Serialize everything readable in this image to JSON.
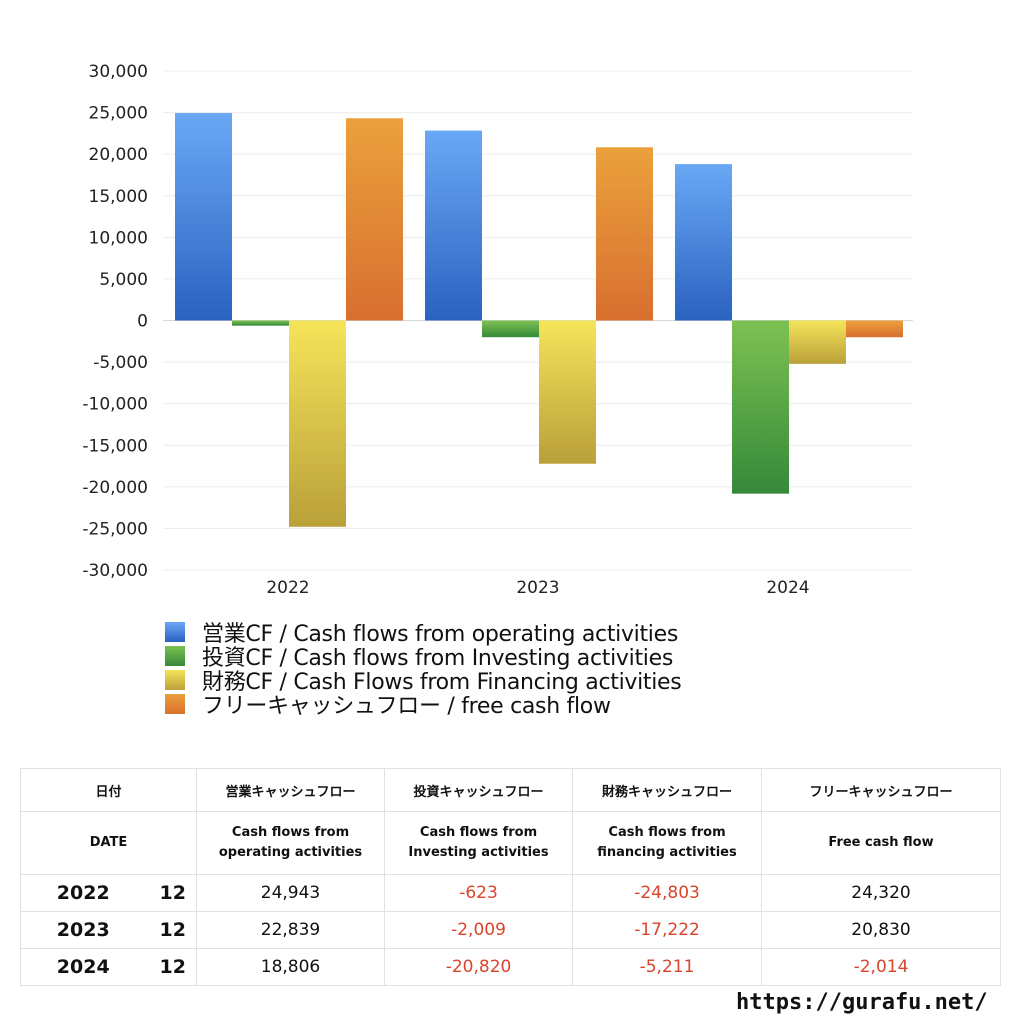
{
  "chart_data": {
    "type": "bar",
    "categories": [
      "2022",
      "2023",
      "2024"
    ],
    "series": [
      {
        "name": "営業CF / Cash flows from operating activities",
        "values": [
          24943,
          22839,
          18806
        ]
      },
      {
        "name": "投資CF / Cash flows from Investing activities",
        "values": [
          -623,
          -2009,
          -20820
        ]
      },
      {
        "name": "財務CF / Cash Flows from Financing activities",
        "values": [
          -24803,
          -17222,
          -5211
        ]
      },
      {
        "name": "フリーキャッシュフロー / free cash flow",
        "values": [
          24320,
          20830,
          -2014
        ]
      }
    ],
    "ylim": [
      -30000,
      30000
    ],
    "yticks": [
      30000,
      25000,
      20000,
      15000,
      10000,
      5000,
      0,
      -5000,
      -10000,
      -15000,
      -20000,
      -25000,
      -30000
    ],
    "ytick_labels": [
      "30,000",
      "25,000",
      "20,000",
      "15,000",
      "10,000",
      "5,000",
      "0",
      "-5,000",
      "-10,000",
      "-15,000",
      "-20,000",
      "-25,000",
      "-30,000"
    ],
    "grid": true,
    "legend_position": "bottom-left",
    "colors": [
      {
        "top": "#6aa8f5",
        "bottom": "#2a62c0"
      },
      {
        "top": "#7dc152",
        "bottom": "#35893a"
      },
      {
        "top": "#f6e45a",
        "bottom": "#b9a03a"
      },
      {
        "top": "#eba13c",
        "bottom": "#d86f30"
      }
    ]
  },
  "table": {
    "header_jp": {
      "date": "日付",
      "operating": "営業キャッシュフロー",
      "investing": "投資キャッシュフロー",
      "financing": "財務キャッシュフロー",
      "free": "フリーキャッシュフロー"
    },
    "header_en": {
      "date": "DATE",
      "operating_1": "Cash flows from",
      "operating_2": "operating activities",
      "investing_1": "Cash flows from",
      "investing_2": "Investing activities",
      "financing_1": "Cash flows from",
      "financing_2": "financing activities",
      "free": "Free cash flow"
    },
    "rows": [
      {
        "year": "2022",
        "month": "12",
        "operating": "24,943",
        "investing": "-623",
        "financing": "-24,803",
        "free": "24,320"
      },
      {
        "year": "2023",
        "month": "12",
        "operating": "22,839",
        "investing": "-2,009",
        "financing": "-17,222",
        "free": "20,830"
      },
      {
        "year": "2024",
        "month": "12",
        "operating": "18,806",
        "investing": "-20,820",
        "financing": "-5,211",
        "free": "-2,014"
      }
    ]
  },
  "footer": {
    "credit": "https://gurafu.net/"
  }
}
